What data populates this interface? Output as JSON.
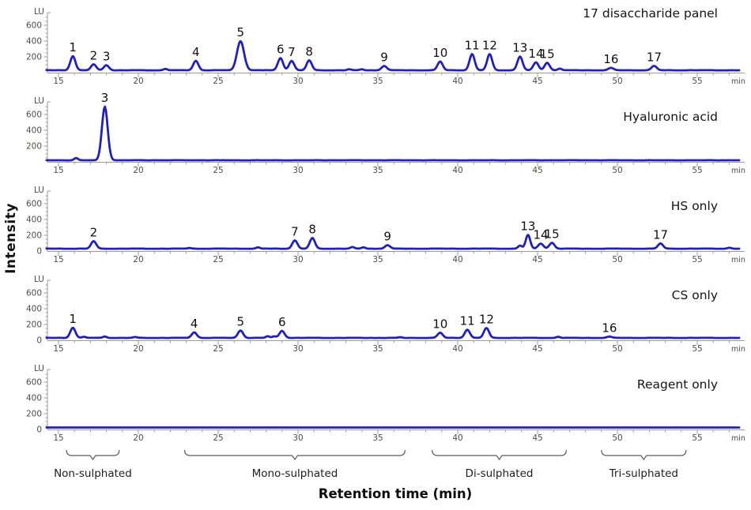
{
  "figure": {
    "ylabel": "Intensity",
    "xlabel": "Retention time (min)",
    "y_unit": "LU",
    "x_unit": "min",
    "trace_color": "#2121b2",
    "axis_color": "#9b9b9b",
    "tick_text_color": "#4d4d45",
    "x_ticks": [
      15,
      20,
      25,
      30,
      35,
      40,
      45,
      50,
      55
    ],
    "x_range": [
      14.25,
      57.65
    ],
    "y_major_ticks": [
      200,
      400,
      600
    ],
    "y_minor_step": 50,
    "y_max": 730
  },
  "chart_data": [
    {
      "type": "line",
      "title": "17 disaccharide panel",
      "baseline_lu": 30,
      "noise": 2,
      "show_zero": false,
      "peaks": [
        {
          "label": "1",
          "t": 15.9,
          "lu": 210
        },
        {
          "label": "2",
          "t": 17.2,
          "lu": 105
        },
        {
          "label": "3",
          "t": 18.0,
          "lu": 95
        },
        {
          "label": "4",
          "t": 23.6,
          "lu": 150
        },
        {
          "label": "5",
          "t": 26.4,
          "lu": 400,
          "sigma": 0.22
        },
        {
          "label": "6",
          "t": 28.9,
          "lu": 185
        },
        {
          "label": "7",
          "t": 29.6,
          "lu": 150
        },
        {
          "label": "8",
          "t": 30.7,
          "lu": 155
        },
        {
          "label": "9",
          "t": 35.4,
          "lu": 85
        },
        {
          "label": "10",
          "t": 38.9,
          "lu": 140
        },
        {
          "label": "11",
          "t": 40.9,
          "lu": 235
        },
        {
          "label": "12",
          "t": 42.0,
          "lu": 235
        },
        {
          "label": "13",
          "t": 43.9,
          "lu": 205
        },
        {
          "label": "14",
          "t": 44.9,
          "lu": 130
        },
        {
          "label": "15",
          "t": 45.6,
          "lu": 125
        },
        {
          "label": "16",
          "t": 49.6,
          "lu": 60
        },
        {
          "label": "17",
          "t": 52.3,
          "lu": 85
        }
      ],
      "minor_bumps": [
        [
          21.7,
          18
        ],
        [
          33.2,
          12
        ],
        [
          34.0,
          12
        ],
        [
          46.4,
          22
        ]
      ]
    },
    {
      "type": "line",
      "title": "Hyaluronic acid",
      "baseline_lu": 20,
      "noise": 1,
      "show_zero": false,
      "peaks": [
        {
          "label": "3",
          "t": 17.9,
          "lu": 700,
          "sigma": 0.18
        }
      ],
      "minor_bumps": [
        [
          16.1,
          28
        ]
      ]
    },
    {
      "type": "line",
      "title": "HS only",
      "baseline_lu": 30,
      "noise": 2,
      "show_zero": true,
      "peaks": [
        {
          "label": "2",
          "t": 17.2,
          "lu": 125
        },
        {
          "label": "7",
          "t": 29.8,
          "lu": 135
        },
        {
          "label": "8",
          "t": 30.9,
          "lu": 165
        },
        {
          "label": "9",
          "t": 35.6,
          "lu": 75
        },
        {
          "label": "13",
          "t": 44.4,
          "lu": 205,
          "sigma": 0.14
        },
        {
          "label": "14",
          "t": 45.2,
          "lu": 95
        },
        {
          "label": "15",
          "t": 45.9,
          "lu": 105
        },
        {
          "label": "17",
          "t": 52.7,
          "lu": 95
        }
      ],
      "minor_bumps": [
        [
          13.9,
          18
        ],
        [
          23.2,
          10
        ],
        [
          27.5,
          16
        ],
        [
          33.4,
          20
        ],
        [
          34.1,
          18
        ],
        [
          43.9,
          40
        ],
        [
          57.0,
          12
        ]
      ]
    },
    {
      "type": "line",
      "title": "CS only",
      "baseline_lu": 30,
      "noise": 2,
      "show_zero": true,
      "peaks": [
        {
          "label": "1",
          "t": 15.9,
          "lu": 160
        },
        {
          "label": "4",
          "t": 23.5,
          "lu": 100
        },
        {
          "label": "5",
          "t": 26.4,
          "lu": 125
        },
        {
          "label": "6",
          "t": 29.0,
          "lu": 120
        },
        {
          "label": "10",
          "t": 38.9,
          "lu": 95
        },
        {
          "label": "11",
          "t": 40.6,
          "lu": 135
        },
        {
          "label": "12",
          "t": 41.8,
          "lu": 155
        },
        {
          "label": "16",
          "t": 49.5,
          "lu": 45
        }
      ],
      "minor_bumps": [
        [
          16.6,
          14
        ],
        [
          17.9,
          18
        ],
        [
          19.8,
          10
        ],
        [
          28.1,
          20
        ],
        [
          28.5,
          18
        ],
        [
          36.4,
          8
        ],
        [
          46.3,
          14
        ]
      ]
    },
    {
      "type": "line",
      "title": "Reagent only",
      "baseline_lu": 25,
      "noise": 0.5,
      "show_zero": true,
      "peaks": [],
      "minor_bumps": []
    }
  ],
  "groups": [
    {
      "label": "Non-sulphated",
      "from": 15.5,
      "to": 18.8
    },
    {
      "label": "Mono-sulphated",
      "from": 22.9,
      "to": 36.7
    },
    {
      "label": "Di-sulphated",
      "from": 38.4,
      "to": 46.8
    },
    {
      "label": "Tri-sulphated",
      "from": 49.0,
      "to": 54.3
    }
  ]
}
